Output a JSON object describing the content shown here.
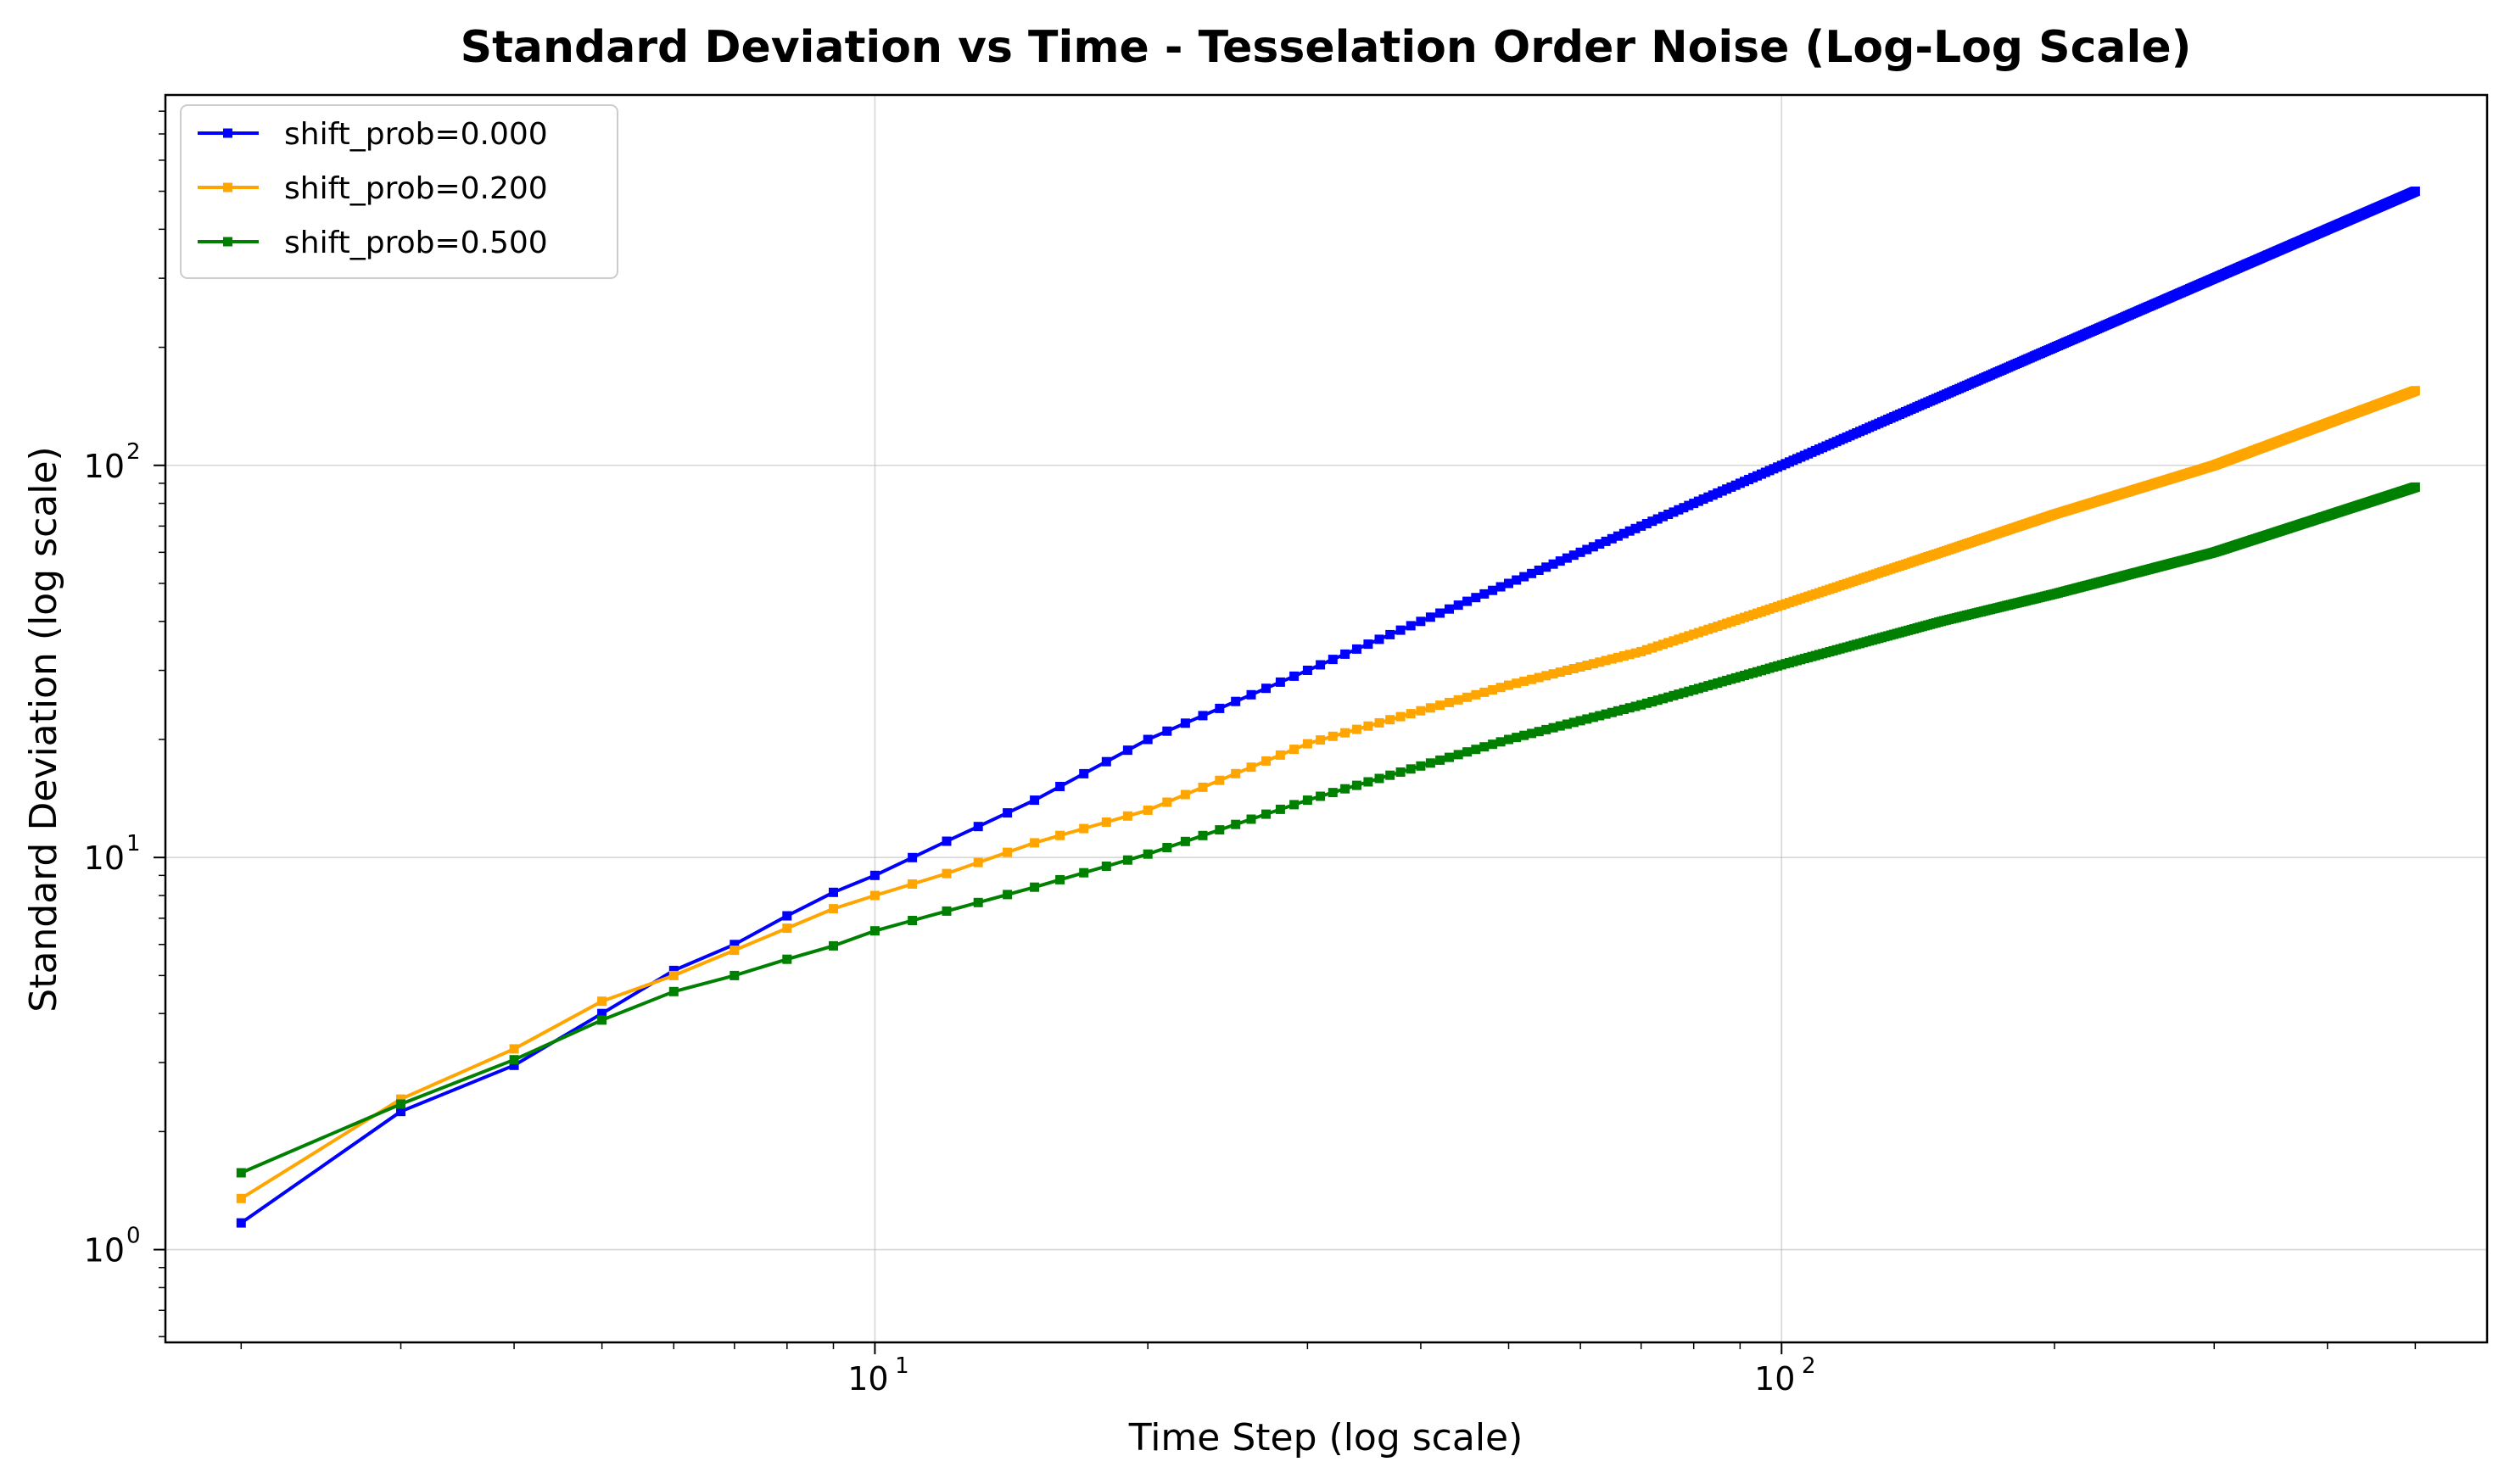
{
  "chart_data": {
    "type": "line",
    "title": "Standard Deviation vs Time - Tesselation Order Noise (Log-Log Scale)",
    "xlabel": "Time Step (log scale)",
    "ylabel": "Standard Deviation (log scale)",
    "xscale": "log",
    "yscale": "log",
    "xlim": [
      1.65,
      600
    ],
    "ylim": [
      0.58,
      880
    ],
    "grid": true,
    "legend_position": "top-left",
    "x_ticks": [
      {
        "value": 10,
        "base": "10",
        "exp": "1"
      },
      {
        "value": 100,
        "base": "10",
        "exp": "2"
      }
    ],
    "y_ticks": [
      {
        "value": 1,
        "base": "10",
        "exp": "0"
      },
      {
        "value": 10,
        "base": "10",
        "exp": "1"
      },
      {
        "value": 100,
        "base": "10",
        "exp": "2"
      }
    ],
    "series": [
      {
        "name": "shift_prob=0.000",
        "color": "#0000ff",
        "points": [
          [
            2,
            1.17
          ],
          [
            3,
            2.25
          ],
          [
            4,
            2.95
          ],
          [
            5,
            4.0
          ],
          [
            6,
            5.15
          ],
          [
            7,
            6.0
          ],
          [
            8,
            7.1
          ],
          [
            9,
            8.15
          ],
          [
            10,
            9.0
          ],
          [
            12,
            11.0
          ],
          [
            15,
            14.0
          ],
          [
            20,
            20.0
          ],
          [
            30,
            30.0
          ],
          [
            50,
            50.0
          ],
          [
            100,
            100.0
          ],
          [
            200,
            200.0
          ],
          [
            300,
            300.0
          ],
          [
            500,
            500.0
          ]
        ]
      },
      {
        "name": "shift_prob=0.200",
        "color": "#ffa500",
        "points": [
          [
            2,
            1.35
          ],
          [
            3,
            2.42
          ],
          [
            4,
            3.25
          ],
          [
            5,
            4.3
          ],
          [
            6,
            5.0
          ],
          [
            7,
            5.8
          ],
          [
            8,
            6.6
          ],
          [
            9,
            7.4
          ],
          [
            10,
            8.0
          ],
          [
            12,
            9.1
          ],
          [
            15,
            10.9
          ],
          [
            20,
            13.2
          ],
          [
            30,
            19.5
          ],
          [
            50,
            27.5
          ],
          [
            70,
            33.5
          ],
          [
            100,
            44.0
          ],
          [
            150,
            60.0
          ],
          [
            200,
            75.0
          ],
          [
            300,
            100.0
          ],
          [
            500,
            155.0
          ]
        ]
      },
      {
        "name": "shift_prob=0.500",
        "color": "#008000",
        "points": [
          [
            2,
            1.57
          ],
          [
            3,
            2.35
          ],
          [
            4,
            3.05
          ],
          [
            5,
            3.85
          ],
          [
            6,
            4.55
          ],
          [
            7,
            5.0
          ],
          [
            8,
            5.5
          ],
          [
            9,
            5.95
          ],
          [
            10,
            6.5
          ],
          [
            12,
            7.3
          ],
          [
            15,
            8.4
          ],
          [
            20,
            10.2
          ],
          [
            30,
            14.0
          ],
          [
            50,
            20.0
          ],
          [
            70,
            24.5
          ],
          [
            100,
            31.0
          ],
          [
            150,
            40.0
          ],
          [
            200,
            47.0
          ],
          [
            300,
            60.0
          ],
          [
            500,
            88.0
          ]
        ]
      }
    ]
  }
}
